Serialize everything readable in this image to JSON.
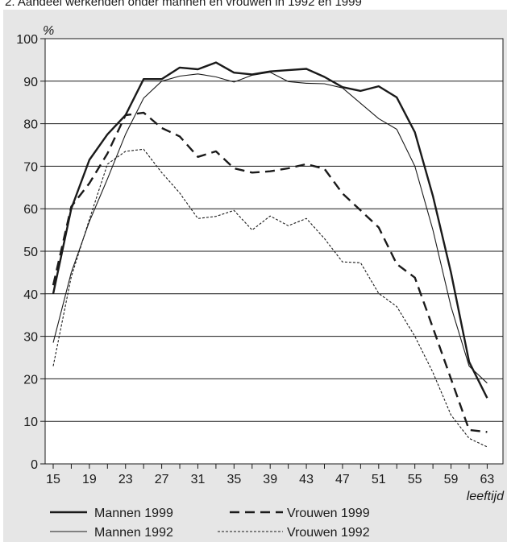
{
  "chart_data": {
    "type": "line",
    "title": "2. Aandeel werkenden onder mannen en vrouwen in 1992 en 1999",
    "y_unit": "%",
    "xlabel": "leeftijd",
    "ylim": [
      0,
      100
    ],
    "y_ticks": [
      "0",
      "10",
      "20",
      "30",
      "40",
      "50",
      "60",
      "70",
      "80",
      "90",
      "100"
    ],
    "x_ticks": [
      "15",
      "19",
      "23",
      "27",
      "31",
      "35",
      "39",
      "43",
      "47",
      "51",
      "55",
      "59",
      "63"
    ],
    "grid": "horizontal",
    "x": [
      15,
      17,
      19,
      21,
      23,
      25,
      27,
      29,
      31,
      33,
      35,
      37,
      39,
      41,
      43,
      45,
      47,
      49,
      51,
      53,
      55,
      57,
      59,
      61,
      63
    ],
    "series": [
      {
        "name": "Mannen 1999",
        "style": "thick-solid",
        "values": [
          40,
          60,
          71.5,
          77.5,
          82,
          90.5,
          90.5,
          93.2,
          92.8,
          94.4,
          92,
          91.6,
          92.3,
          92.6,
          92.9,
          91,
          88.6,
          87.7,
          88.8,
          86.2,
          78,
          63,
          45,
          24,
          15.5
        ]
      },
      {
        "name": "Mannen 1992",
        "style": "thin-solid",
        "values": [
          28.5,
          45,
          57,
          67,
          77.5,
          86,
          90,
          91.2,
          91.7,
          91,
          89.8,
          91.4,
          92.1,
          89.9,
          89.5,
          89.4,
          88.4,
          84.8,
          81.2,
          78.7,
          70,
          55,
          37,
          23,
          19
        ]
      },
      {
        "name": "Vrouwen 1999",
        "style": "dashed",
        "values": [
          42,
          60.5,
          66,
          73,
          82,
          82.6,
          79,
          77,
          72.2,
          73.5,
          69.5,
          68.5,
          68.8,
          69.5,
          70.5,
          69.4,
          63.6,
          59.6,
          55.6,
          47,
          43.8,
          32,
          20,
          8,
          7.5
        ]
      },
      {
        "name": "Vrouwen 1992",
        "style": "dotted",
        "values": [
          23,
          44,
          57.5,
          70.5,
          73.5,
          74,
          68.5,
          63.7,
          57.7,
          58.2,
          59.6,
          55,
          58.3,
          56,
          57.7,
          53,
          47.5,
          47.3,
          40.1,
          37,
          30,
          21.5,
          11.5,
          6,
          4
        ]
      }
    ],
    "legend": {
      "placement": "bottom",
      "items": [
        "Mannen 1999",
        "Vrouwen 1999",
        "Mannen 1992",
        "Vrouwen 1992"
      ]
    }
  }
}
